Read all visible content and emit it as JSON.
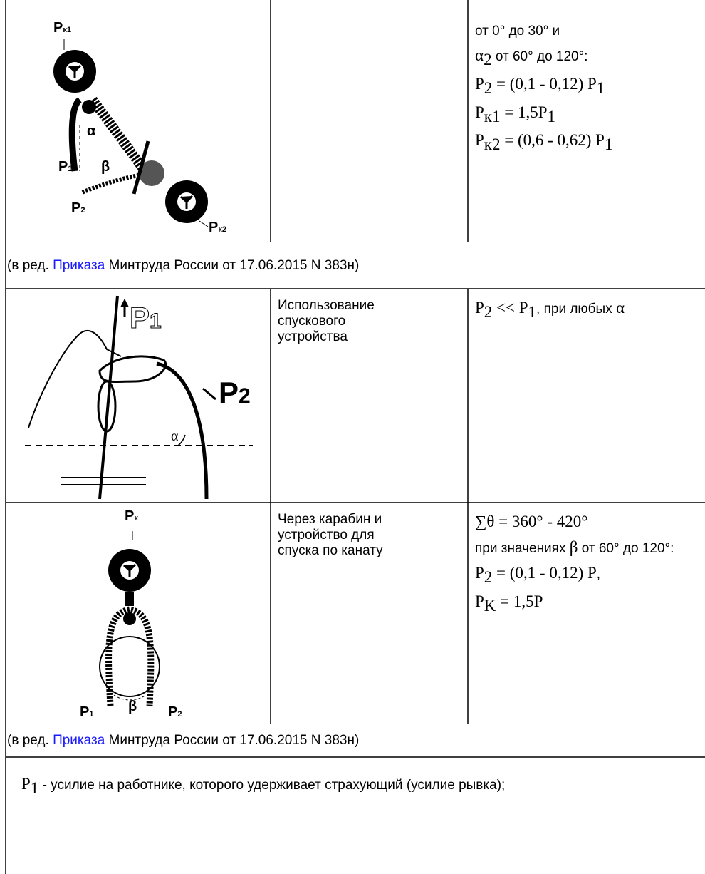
{
  "row1": {
    "figure": [
      {
        "text": "P",
        "sub": "к1"
      },
      {
        "text": "P",
        "sub": "1"
      },
      {
        "text": "α"
      },
      {
        "text": "β"
      },
      {
        "text": "P",
        "sub": "2"
      },
      {
        "text": "P",
        "sub": "к2"
      }
    ],
    "col3": [
      [
        {
          "text": "от 0° до 30° и"
        }
      ],
      [
        {
          "text": "α",
          "math": true
        },
        {
          "sub": "2",
          "math": true
        },
        {
          "text": " от 60° до 120°:"
        }
      ],
      [
        {
          "text": "P",
          "math": true
        },
        {
          "sub": "2",
          "math": true
        },
        {
          "text": " = (0,1 - 0,12) P",
          "math": true
        },
        {
          "sub": "1",
          "math": true
        }
      ],
      [
        {
          "text": "P",
          "math": true
        },
        {
          "sub": "к1",
          "math": true
        },
        {
          "text": " = 1,5P",
          "math": true
        },
        {
          "sub": "1",
          "math": true
        }
      ],
      [
        {
          "text": "P",
          "math": true
        },
        {
          "sub": "к2",
          "math": true
        },
        {
          "text": " = (0,6 - 0,62) P",
          "math": true
        },
        {
          "sub": "1",
          "math": true
        }
      ]
    ]
  },
  "note1": {
    "before": "(в ред. ",
    "link": "Приказа",
    "after": " Минтруда России от 17.06.2015 N 383н)"
  },
  "row2": {
    "figure": [
      {
        "text": "P",
        "sub": "1"
      },
      {
        "text": "P",
        "sub": "2"
      },
      {
        "text": "α"
      }
    ],
    "description": "Использование спускового устройства",
    "col3": [
      [
        {
          "text": "P",
          "math": true
        },
        {
          "sub": "2",
          "math": true
        },
        {
          "text": " << P",
          "math": true
        },
        {
          "sub": "1",
          "math": true
        },
        {
          "text": ", при любых "
        },
        {
          "text": "α",
          "math": true
        }
      ]
    ]
  },
  "row3": {
    "figure": [
      {
        "text": "P",
        "sub": "к"
      },
      {
        "text": "P",
        "sub": "1"
      },
      {
        "text": "β"
      },
      {
        "text": "P",
        "sub": "2"
      }
    ],
    "description": "Через карабин и устройство для спуска по канату",
    "col3": [
      [
        {
          "text": "∑θ = 360° - 420°",
          "math": true
        }
      ],
      [
        {
          "text": "при значениях "
        },
        {
          "text": "β",
          "math": true
        },
        {
          "text": " от 60° до 120°:"
        }
      ],
      [
        {
          "text": "P",
          "math": true
        },
        {
          "sub": "2",
          "math": true
        },
        {
          "text": " = (0,1 - 0,12) P",
          "math": true
        },
        {
          "text": ","
        }
      ],
      [
        {
          "text": "P",
          "math": true
        },
        {
          "sub": "K",
          "math": true
        },
        {
          "text": " = 1,5P",
          "math": true
        }
      ]
    ]
  },
  "note2": {
    "before": "(в ред. ",
    "link": "Приказа",
    "after": " Минтруда России от 17.06.2015 N 383н)"
  },
  "footer": [
    {
      "text": "P",
      "math": true
    },
    {
      "sub": "1",
      "math": true
    },
    {
      "text": " - усилие на работнике, которого удерживает страхующий (усилие рывка);"
    }
  ]
}
